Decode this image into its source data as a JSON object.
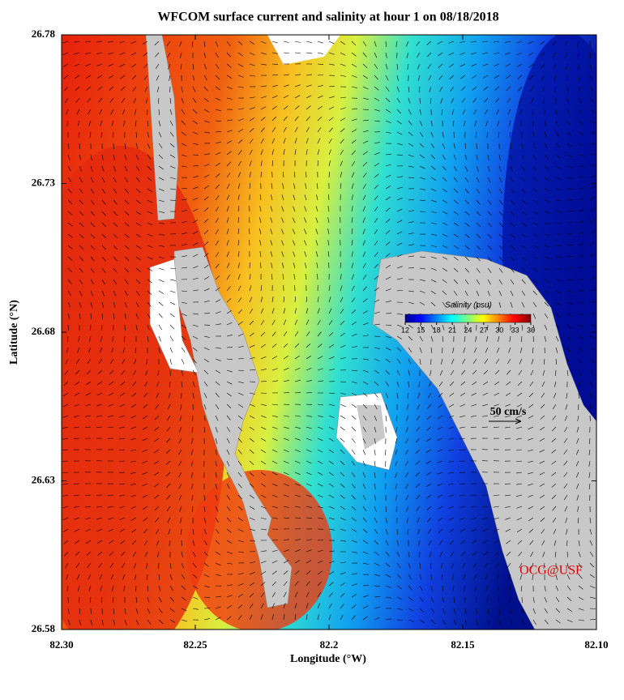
{
  "chart_data": {
    "type": "map",
    "title": "WFCOM surface current and salinity at hour 1 on 08/18/2018",
    "xlabel": "Longitude (°W)",
    "ylabel": "Latitude (°N)",
    "xlim": [
      82.3,
      82.1
    ],
    "xticks": [
      {
        "value": 82.3,
        "label": "82.30"
      },
      82.25,
      82.2,
      82.15,
      {
        "value": 82.1,
        "label": "82.10"
      }
    ],
    "ylim": [
      26.58,
      26.78
    ],
    "yticks": [
      26.58,
      26.63,
      26.68,
      26.73,
      26.78
    ],
    "colorbar": {
      "title": "Salinity (psu)",
      "lim": [
        12,
        36
      ],
      "ticks": [
        12,
        15,
        18,
        21,
        24,
        27,
        30,
        33,
        36
      ]
    },
    "scale_label": "50 cm/s",
    "credit": "OCG@USF"
  }
}
